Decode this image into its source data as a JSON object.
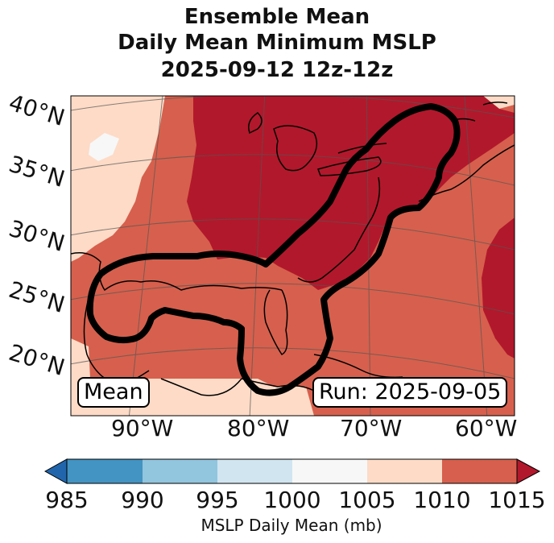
{
  "title": {
    "line1": "Ensemble Mean",
    "line2": "Daily Mean Minimum MSLP",
    "line3": "2025-09-12 12z-12z"
  },
  "map": {
    "lat_labels": [
      "40°N",
      "35°N",
      "30°N",
      "25°N",
      "20°N"
    ],
    "lon_labels": [
      "90°W",
      "80°W",
      "70°W",
      "60°W"
    ],
    "mean_label": "Mean",
    "run_label": "Run: 2025-09-05"
  },
  "colorbar": {
    "label": "MSLP Daily Mean (mb)",
    "ticks": [
      "985",
      "990",
      "995",
      "1000",
      "1005",
      "1010",
      "1015"
    ],
    "colors": {
      "under": "#2166ac",
      "985-990": "#4393c3",
      "990-995": "#92c5de",
      "995-1000": "#d1e5f0",
      "1000-1005": "#f7f7f7",
      "1005-1010": "#fddbc7",
      "1010-1015": "#d6604d",
      "over": "#b2182b"
    }
  }
}
